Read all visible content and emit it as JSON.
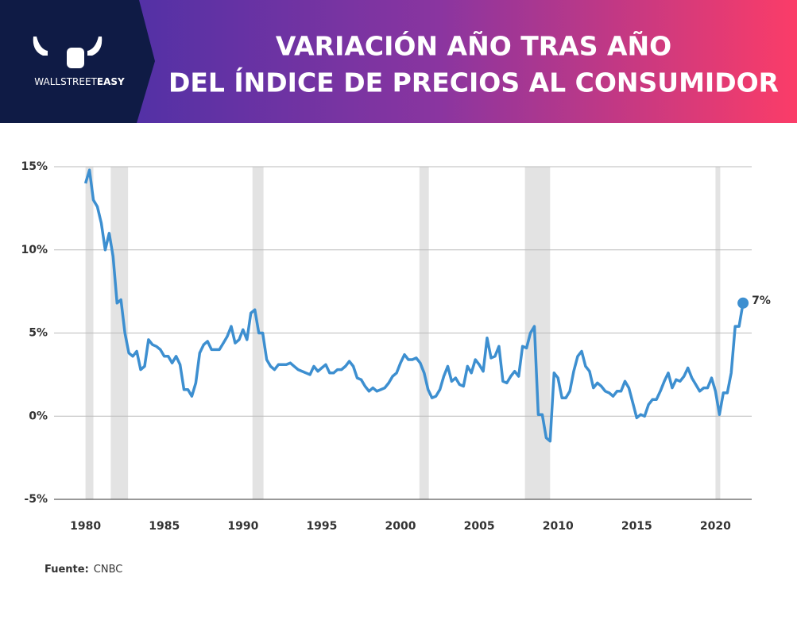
{
  "header": {
    "brand_a": "WALLSTREET",
    "brand_b": "EASY",
    "title_line1": "VARIACIÓN AÑO TRAS AÑO",
    "title_line2": "DEL ÍNDICE DE PRECIOS AL CONSUMIDOR"
  },
  "source": {
    "label": "Fuente:",
    "text": "CNBC"
  },
  "chart_data": {
    "type": "line",
    "color": "#3d8fd0",
    "grid": true,
    "xlim": [
      1978,
      2022.3
    ],
    "xticks": [
      1980,
      1985,
      1990,
      1995,
      2000,
      2005,
      2010,
      2015,
      2020
    ],
    "ylim": [
      -5,
      15
    ],
    "yticks": [
      {
        "value": -5,
        "label": "-5%"
      },
      {
        "value": 0,
        "label": "0%"
      },
      {
        "value": 5,
        "label": "5%"
      },
      {
        "value": 10,
        "label": "10%"
      },
      {
        "value": 15,
        "label": "15%"
      }
    ],
    "recessions": [
      [
        1980.0,
        1980.5
      ],
      [
        1981.6,
        1982.7
      ],
      [
        1990.6,
        1991.3
      ],
      [
        2001.2,
        2001.8
      ],
      [
        2007.9,
        2009.5
      ],
      [
        2020.0,
        2020.3
      ]
    ],
    "end_label": "7%",
    "x": [
      1980,
      1980.25,
      1980.5,
      1980.75,
      1981,
      1981.25,
      1981.5,
      1981.75,
      1982,
      1982.25,
      1982.5,
      1982.75,
      1983,
      1983.25,
      1983.5,
      1983.75,
      1984,
      1984.25,
      1984.5,
      1984.75,
      1985,
      1985.25,
      1985.5,
      1985.75,
      1986,
      1986.25,
      1986.5,
      1986.75,
      1987,
      1987.25,
      1987.5,
      1987.75,
      1988,
      1988.25,
      1988.5,
      1988.75,
      1989,
      1989.25,
      1989.5,
      1989.75,
      1990,
      1990.25,
      1990.5,
      1990.75,
      1991,
      1991.25,
      1991.5,
      1991.75,
      1992,
      1992.25,
      1992.5,
      1992.75,
      1993,
      1993.25,
      1993.5,
      1993.75,
      1994,
      1994.25,
      1994.5,
      1994.75,
      1995,
      1995.25,
      1995.5,
      1995.75,
      1996,
      1996.25,
      1996.5,
      1996.75,
      1997,
      1997.25,
      1997.5,
      1997.75,
      1998,
      1998.25,
      1998.5,
      1998.75,
      1999,
      1999.25,
      1999.5,
      1999.75,
      2000,
      2000.25,
      2000.5,
      2000.75,
      2001,
      2001.25,
      2001.5,
      2001.75,
      2002,
      2002.25,
      2002.5,
      2002.75,
      2003,
      2003.25,
      2003.5,
      2003.75,
      2004,
      2004.25,
      2004.5,
      2004.75,
      2005,
      2005.25,
      2005.5,
      2005.75,
      2006,
      2006.25,
      2006.5,
      2006.75,
      2007,
      2007.25,
      2007.5,
      2007.75,
      2008,
      2008.25,
      2008.5,
      2008.75,
      2009,
      2009.25,
      2009.5,
      2009.75,
      2010,
      2010.25,
      2010.5,
      2010.75,
      2011,
      2011.25,
      2011.5,
      2011.75,
      2012,
      2012.25,
      2012.5,
      2012.75,
      2013,
      2013.25,
      2013.5,
      2013.75,
      2014,
      2014.25,
      2014.5,
      2014.75,
      2015,
      2015.25,
      2015.5,
      2015.75,
      2016,
      2016.25,
      2016.5,
      2016.75,
      2017,
      2017.25,
      2017.5,
      2017.75,
      2018,
      2018.25,
      2018.5,
      2018.75,
      2019,
      2019.25,
      2019.5,
      2019.75,
      2020,
      2020.25,
      2020.5,
      2020.75,
      2021,
      2021.25,
      2021.5,
      2021.75
    ],
    "values": [
      14.0,
      14.8,
      13.0,
      12.6,
      11.6,
      10.0,
      11.0,
      9.6,
      6.8,
      7.0,
      5.0,
      3.8,
      3.6,
      3.9,
      2.8,
      3.0,
      4.6,
      4.3,
      4.2,
      4.0,
      3.6,
      3.6,
      3.2,
      3.6,
      3.1,
      1.6,
      1.6,
      1.2,
      2.0,
      3.8,
      4.3,
      4.5,
      4.0,
      4.0,
      4.0,
      4.4,
      4.8,
      5.4,
      4.4,
      4.6,
      5.2,
      4.6,
      6.2,
      6.4,
      5.0,
      5.0,
      3.4,
      3.0,
      2.8,
      3.1,
      3.1,
      3.1,
      3.2,
      3.0,
      2.8,
      2.7,
      2.6,
      2.5,
      3.0,
      2.7,
      2.9,
      3.1,
      2.6,
      2.6,
      2.8,
      2.8,
      3.0,
      3.3,
      3.0,
      2.3,
      2.2,
      1.8,
      1.5,
      1.7,
      1.5,
      1.6,
      1.7,
      2.0,
      2.4,
      2.6,
      3.2,
      3.7,
      3.4,
      3.4,
      3.5,
      3.2,
      2.6,
      1.6,
      1.1,
      1.2,
      1.6,
      2.4,
      3.0,
      2.1,
      2.3,
      1.9,
      1.8,
      3.0,
      2.6,
      3.4,
      3.1,
      2.7,
      4.7,
      3.5,
      3.6,
      4.2,
      2.1,
      2.0,
      2.4,
      2.7,
      2.4,
      4.2,
      4.1,
      5.0,
      5.4,
      0.1,
      0.1,
      -1.3,
      -1.5,
      2.6,
      2.3,
      1.1,
      1.1,
      1.5,
      2.7,
      3.6,
      3.9,
      3.0,
      2.7,
      1.7,
      2.0,
      1.8,
      1.5,
      1.4,
      1.2,
      1.5,
      1.5,
      2.1,
      1.7,
      0.8,
      -0.1,
      0.1,
      0.0,
      0.7,
      1.0,
      1.0,
      1.5,
      2.1,
      2.6,
      1.7,
      2.2,
      2.1,
      2.4,
      2.9,
      2.3,
      1.9,
      1.5,
      1.7,
      1.7,
      2.3,
      1.5,
      0.1,
      1.4,
      1.4,
      2.6,
      5.4,
      5.4,
      6.8
    ]
  }
}
